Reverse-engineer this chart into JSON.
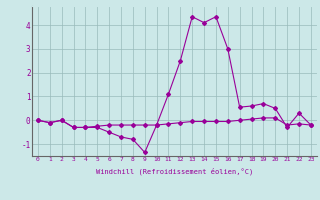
{
  "xlabel": "Windchill (Refroidissement éolien,°C)",
  "x": [
    0,
    1,
    2,
    3,
    4,
    5,
    6,
    7,
    8,
    9,
    10,
    11,
    12,
    13,
    14,
    15,
    16,
    17,
    18,
    19,
    20,
    21,
    22,
    23
  ],
  "line1": [
    0.0,
    -0.1,
    0.0,
    -0.3,
    -0.3,
    -0.3,
    -0.5,
    -0.7,
    -0.8,
    -1.35,
    -0.2,
    1.1,
    2.5,
    4.35,
    4.1,
    4.35,
    3.0,
    0.55,
    0.6,
    0.7,
    0.5,
    -0.3,
    0.3,
    -0.2
  ],
  "line2": [
    0.0,
    -0.1,
    0.0,
    -0.3,
    -0.3,
    -0.25,
    -0.2,
    -0.2,
    -0.2,
    -0.2,
    -0.2,
    -0.15,
    -0.1,
    -0.05,
    -0.05,
    -0.05,
    -0.05,
    0.0,
    0.05,
    0.1,
    0.1,
    -0.2,
    -0.15,
    -0.2
  ],
  "line_color": "#990099",
  "bg_color": "#cce8e8",
  "grid_color": "#99bbbb",
  "ylim": [
    -1.5,
    4.8
  ],
  "xlim": [
    -0.5,
    23.5
  ]
}
